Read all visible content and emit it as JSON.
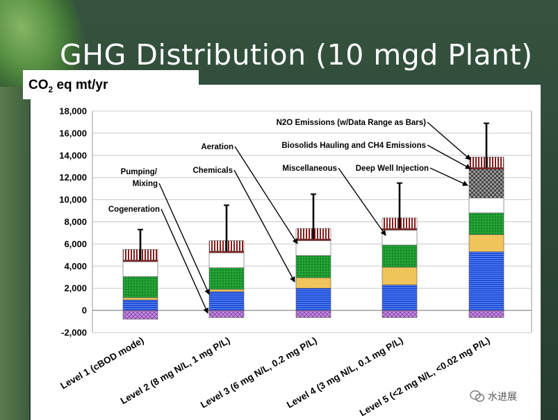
{
  "slide": {
    "title": "GHG Distribution (10 mgd Plant)",
    "unit_label_main": "CO",
    "unit_label_sub": "2",
    "unit_label_rest": " eq mt/yr",
    "watermark": "水进展"
  },
  "chart_data": {
    "type": "bar",
    "stacked": true,
    "title": "",
    "xlabel": "",
    "ylabel": "CO2 eq mt/yr",
    "ylim": [
      -2000,
      18000
    ],
    "yticks": [
      -2000,
      0,
      2000,
      4000,
      6000,
      8000,
      10000,
      12000,
      14000,
      16000,
      18000
    ],
    "ytick_labels": [
      "-2,000",
      "0",
      "2,000",
      "4,000",
      "6,000",
      "8,000",
      "10,000",
      "12,000",
      "14,000",
      "16,000",
      "18,000"
    ],
    "grid": "horizontal",
    "categories": [
      "Level 1 (cBOD mode)",
      "Level 2 (8 mg N/L, 1 mg P/L)",
      "Level 3 (6 mg N/L, 0.2 mg P/L)",
      "Level 4 (3 mg N/L, 0.1 mg P/L)",
      "Level 5 (<2 mg N/L, <0.02 mg P/L)"
    ],
    "series": [
      {
        "name": "Cogeneration",
        "color": "#b87ad6",
        "pattern": "crosshatch",
        "values": [
          -800,
          -650,
          -650,
          -650,
          -650
        ]
      },
      {
        "name": "Pumping/ Mixing",
        "color": "#1f4fd6",
        "pattern": "hlines",
        "values": [
          950,
          1700,
          2000,
          2300,
          5300
        ]
      },
      {
        "name": "Chemicals",
        "color": "#f2c25a",
        "pattern": "dots",
        "values": [
          200,
          200,
          950,
          1600,
          1550
        ]
      },
      {
        "name": "Aeration",
        "color": "#1f9a30",
        "pattern": "dots",
        "values": [
          1900,
          1950,
          2000,
          2000,
          1950
        ]
      },
      {
        "name": "Miscellaneous",
        "color": "#ffffff",
        "pattern": "solid",
        "values": [
          1350,
          1350,
          1350,
          1350,
          1350
        ]
      },
      {
        "name": "Deep Well Injection",
        "color": "#666666",
        "pattern": "checker",
        "values": [
          0,
          0,
          0,
          0,
          2600
        ]
      },
      {
        "name": "Biosolids Hauling and CH4 Emissions",
        "color": "#8b1a1a",
        "pattern": "solid",
        "values": [
          150,
          150,
          150,
          150,
          150
        ]
      },
      {
        "name": "N2O Emissions (w/Data Range as Bars)",
        "color": "#8b1a1a",
        "pattern": "vlines",
        "values": [
          950,
          950,
          950,
          950,
          950
        ]
      }
    ],
    "error_bar_top": [
      7300,
      9500,
      10500,
      11500,
      16900
    ],
    "annotations": [
      "N2O Emissions (w/Data Range as Bars)",
      "Biosolids Hauling and CH4 Emissions",
      "Deep Well Injection",
      "Miscellaneous",
      "Aeration",
      "Chemicals",
      "Pumping/",
      "Mixing",
      "Cogeneration"
    ]
  }
}
